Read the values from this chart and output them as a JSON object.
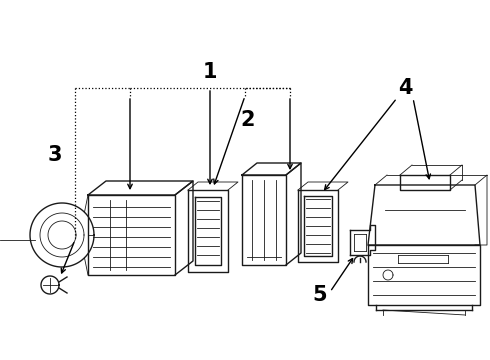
{
  "bg_color": "#ffffff",
  "line_color": "#1a1a1a",
  "label_color": "#000000",
  "figsize": [
    4.9,
    3.6
  ],
  "dpi": 100,
  "label_fontsize": 13,
  "arrow_color": "#000000"
}
